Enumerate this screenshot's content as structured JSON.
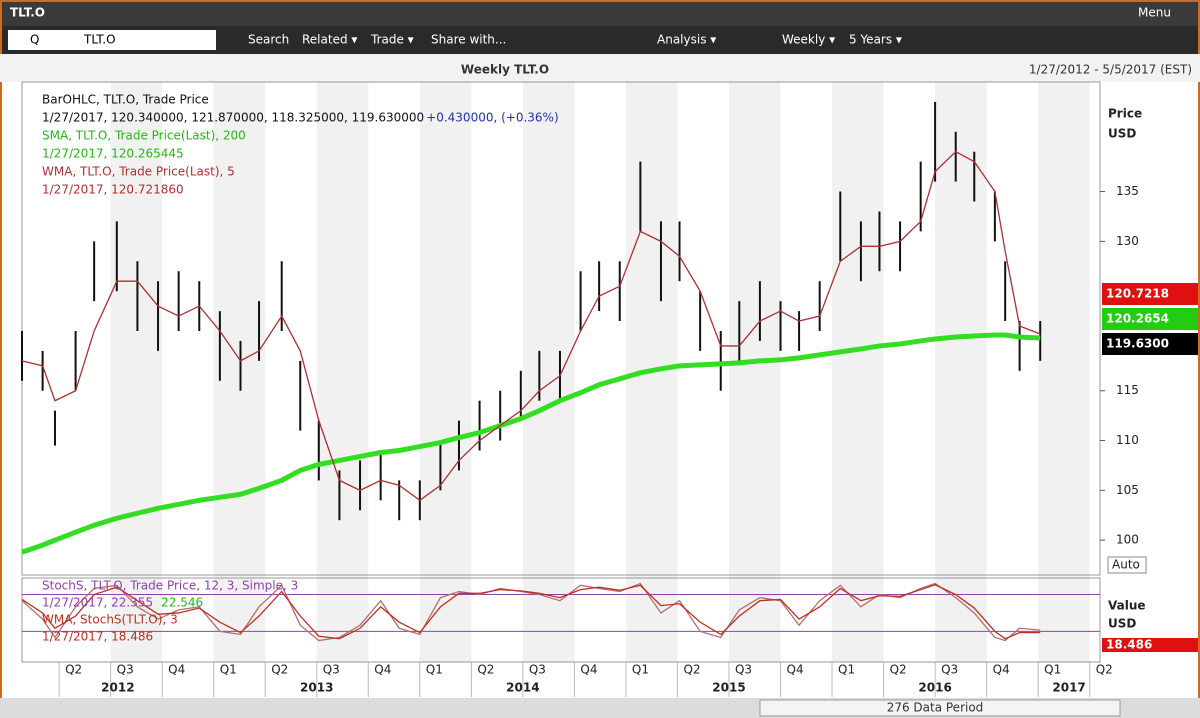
{
  "window": {
    "title": "TLT.O",
    "menu": "Menu"
  },
  "toolbar": {
    "symbol_prefix": "Q",
    "symbol": "TLT.O",
    "buttons": [
      "Search",
      "Related ▾",
      "Trade ▾",
      "Share with...",
      "Analysis ▾",
      "Weekly ▾",
      "5 Years ▾"
    ],
    "auto": "Auto"
  },
  "footer": {
    "period": "276 Data Period"
  },
  "chart_data": [
    {
      "type": "ohlc",
      "title": "Weekly TLT.O",
      "subtitle": "1/27/2012 - 5/5/2017 (EST)",
      "ylabel": "Price",
      "yunit": "USD",
      "x": [
        2012.07,
        2012.17,
        2012.23,
        2012.33,
        2012.42,
        2012.53,
        2012.63,
        2012.73,
        2012.83,
        2012.93,
        2013.03,
        2013.13,
        2013.22,
        2013.33,
        2013.42,
        2013.51,
        2013.61,
        2013.71,
        2013.81,
        2013.9,
        2014.0,
        2014.1,
        2014.19,
        2014.29,
        2014.39,
        2014.49,
        2014.58,
        2014.68,
        2014.78,
        2014.87,
        2014.97,
        2015.07,
        2015.17,
        2015.26,
        2015.36,
        2015.46,
        2015.55,
        2015.65,
        2015.75,
        2015.84,
        2015.94,
        2016.04,
        2016.14,
        2016.23,
        2016.33,
        2016.43,
        2016.5,
        2016.6,
        2016.69,
        2016.79,
        2016.84,
        2016.91,
        2017.01
      ],
      "xlim": [
        2012.07,
        2017.3
      ],
      "xticks": [
        {
          "value": 2012.25,
          "label": "Q2"
        },
        {
          "value": 2012.5,
          "label": "Q3"
        },
        {
          "value": 2012.75,
          "label": "Q4"
        },
        {
          "value": 2013,
          "label": "Q1"
        },
        {
          "value": 2013.25,
          "label": "Q2"
        },
        {
          "value": 2013.5,
          "label": "Q3"
        },
        {
          "value": 2013.75,
          "label": "Q4"
        },
        {
          "value": 2014,
          "label": "Q1"
        },
        {
          "value": 2014.25,
          "label": "Q2"
        },
        {
          "value": 2014.5,
          "label": "Q3"
        },
        {
          "value": 2014.75,
          "label": "Q4"
        },
        {
          "value": 2015,
          "label": "Q1"
        },
        {
          "value": 2015.25,
          "label": "Q2"
        },
        {
          "value": 2015.5,
          "label": "Q3"
        },
        {
          "value": 2015.75,
          "label": "Q4"
        },
        {
          "value": 2016,
          "label": "Q1"
        },
        {
          "value": 2016.25,
          "label": "Q2"
        },
        {
          "value": 2016.5,
          "label": "Q3"
        },
        {
          "value": 2016.75,
          "label": "Q4"
        },
        {
          "value": 2017,
          "label": "Q1"
        },
        {
          "value": 2017.25,
          "label": "Q2"
        }
      ],
      "years": [
        "2012",
        "2013",
        "2014",
        "2015",
        "2016",
        "2017"
      ],
      "ylim": [
        96.5,
        146
      ],
      "yticks": [
        100,
        105,
        110,
        115,
        130,
        135
      ],
      "series": [
        {
          "name": "BarOHLC, TLT.O, Trade Price",
          "values_text": "1/27/2017, 120.340000, 121.870000, 118.325000, 119.630000",
          "change_text": "+0.430000, (+0.36%)",
          "color": "#111111",
          "high": [
            121,
            119,
            113,
            121,
            130,
            132,
            128,
            126,
            127,
            126,
            123,
            120,
            124,
            128,
            118,
            112,
            107,
            108,
            109,
            106,
            106,
            110,
            112,
            114,
            115,
            117,
            119,
            119,
            127,
            128,
            128,
            138,
            132,
            132,
            125,
            121,
            124,
            126,
            124,
            123,
            126,
            135,
            132,
            133,
            132,
            138,
            144,
            141,
            139,
            135,
            128,
            122,
            122
          ],
          "low": [
            116,
            115,
            109.5,
            115,
            124,
            125,
            121,
            119,
            121,
            121,
            116,
            115,
            118,
            121,
            111,
            106,
            102,
            103,
            104,
            102,
            102,
            105,
            107,
            109,
            110,
            112,
            114,
            114,
            121,
            123,
            122,
            131,
            124,
            126,
            119,
            115,
            118,
            120,
            119,
            119,
            121,
            128,
            126,
            127,
            127,
            131,
            136,
            136,
            134,
            130,
            122,
            117,
            118
          ]
        },
        {
          "name": "SMA, TLT.O, Trade Price(Last), 200",
          "values_text": "1/27/2017, 120.265445",
          "color": "#33dd22",
          "values": [
            98.8,
            99.5,
            100,
            100.8,
            101.5,
            102.2,
            102.7,
            103.2,
            103.6,
            104,
            104.3,
            104.6,
            105.2,
            106,
            107,
            107.6,
            108,
            108.4,
            108.8,
            109,
            109.4,
            109.8,
            110.3,
            110.8,
            111.5,
            112.2,
            113,
            114,
            114.8,
            115.6,
            116.2,
            116.8,
            117.2,
            117.5,
            117.6,
            117.7,
            117.8,
            118,
            118.1,
            118.3,
            118.6,
            118.9,
            119.2,
            119.5,
            119.7,
            120,
            120.2,
            120.4,
            120.5,
            120.6,
            120.6,
            120.4,
            120.3
          ]
        },
        {
          "name": "WMA, TLT.O, Trade Price(Last), 5",
          "values_text": "1/27/2017, 120.721860",
          "color": "#b03030",
          "values": [
            118,
            117.5,
            114,
            115,
            121,
            126,
            126,
            123.5,
            122.5,
            123.5,
            121,
            118,
            119,
            122.5,
            119,
            112,
            106,
            105,
            106,
            105.5,
            104,
            105.5,
            108,
            110,
            111.5,
            113,
            115,
            116.5,
            121,
            124.5,
            125.5,
            131,
            130,
            128.5,
            125,
            119.5,
            119.5,
            122,
            123,
            122,
            122.5,
            128,
            129.5,
            129.5,
            130,
            132,
            137,
            139,
            138,
            135,
            129,
            121.5,
            120.7
          ]
        }
      ],
      "last_labels": [
        {
          "value": 120.7218,
          "label": "120.7218",
          "color": "#e01010"
        },
        {
          "value": 120.2654,
          "label": "120.2654",
          "color": "#22cc11"
        },
        {
          "value": 119.63,
          "label": "119.6300",
          "color": "#000000"
        }
      ]
    },
    {
      "type": "line",
      "ylabel": "Value",
      "yunit": "USD",
      "ylim": [
        -30,
        107
      ],
      "levels": [
        20,
        80
      ],
      "level_color": "#9040b0",
      "series": [
        {
          "name": "StochS, TLT.O, Trade Price, 12, 3, Simple, 3",
          "values_text": "1/27/2017, 22.355",
          "extra_text": "22.546",
          "color": "#b07070",
          "values": [
            70,
            40,
            10,
            60,
            90,
            95,
            60,
            40,
            55,
            60,
            20,
            15,
            60,
            95,
            30,
            5,
            10,
            30,
            70,
            25,
            15,
            75,
            85,
            80,
            90,
            85,
            80,
            70,
            95,
            90,
            85,
            98,
            50,
            70,
            20,
            10,
            55,
            75,
            70,
            30,
            70,
            95,
            60,
            80,
            75,
            90,
            98,
            75,
            50,
            10,
            5,
            25,
            22
          ]
        },
        {
          "name": "WMA, StochS(TLT.O), 3",
          "values_text": "1/27/2017, 18.486",
          "color": "#c03020",
          "values": [
            72,
            50,
            25,
            45,
            80,
            92,
            70,
            48,
            50,
            58,
            35,
            18,
            45,
            85,
            45,
            12,
            8,
            25,
            60,
            35,
            18,
            60,
            82,
            82,
            88,
            86,
            82,
            75,
            88,
            92,
            87,
            95,
            62,
            65,
            35,
            15,
            45,
            70,
            72,
            40,
            60,
            90,
            70,
            78,
            77,
            88,
            96,
            80,
            58,
            20,
            8,
            18,
            18
          ]
        }
      ],
      "last_labels": [
        {
          "value": 18.486,
          "label": "18.486",
          "color": "#e01010"
        }
      ]
    }
  ]
}
